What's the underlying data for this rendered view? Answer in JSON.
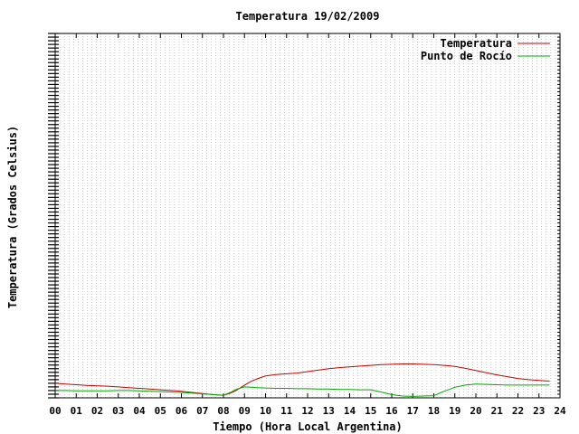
{
  "chart_data": {
    "type": "line",
    "title": "Temperatura 19/02/2009",
    "xlabel": "Tiempo (Hora Local Argentina)",
    "ylabel": "Temperatura (Grados Celsius)",
    "x_ticks": [
      "00",
      "01",
      "02",
      "03",
      "04",
      "05",
      "06",
      "07",
      "08",
      "09",
      "10",
      "11",
      "12",
      "13",
      "14",
      "15",
      "16",
      "17",
      "18",
      "19",
      "20",
      "21",
      "22",
      "23",
      "24"
    ],
    "xlim": [
      0,
      24
    ],
    "ylim": [
      0,
      100
    ],
    "grid": true,
    "legend_position": "top-right",
    "colors": {
      "temperatura": "#cc0000",
      "rocio": "#00aa00",
      "grid": "#a0a0a0",
      "axis": "#000000"
    },
    "series": [
      {
        "name": "Temperatura",
        "color": "#cc0000",
        "x": [
          0,
          0.5,
          1,
          1.5,
          2,
          2.5,
          3,
          3.5,
          4,
          4.5,
          5,
          5.5,
          6,
          6.5,
          7,
          7.5,
          8,
          8.3,
          8.6,
          9,
          9.3,
          9.6,
          10,
          10.5,
          11,
          11.5,
          12,
          12.5,
          13,
          13.5,
          14,
          14.5,
          15,
          15.5,
          16,
          16.5,
          17,
          17.5,
          18,
          18.5,
          19,
          19.5,
          20,
          20.5,
          21,
          21.5,
          22,
          22.5,
          23,
          23.5
        ],
        "y": [
          4,
          3.8,
          3.6,
          3.4,
          3.3,
          3.2,
          3,
          2.8,
          2.6,
          2.4,
          2.2,
          2,
          1.8,
          1.5,
          1.2,
          0.9,
          0.7,
          1.2,
          2,
          3.5,
          4.5,
          5.2,
          6,
          6.4,
          6.6,
          6.8,
          7.2,
          7.6,
          8,
          8.3,
          8.5,
          8.7,
          8.9,
          9.1,
          9.2,
          9.3,
          9.3,
          9.2,
          9.1,
          8.9,
          8.6,
          8.1,
          7.5,
          6.9,
          6.3,
          5.8,
          5.3,
          5,
          4.8,
          4.6
        ]
      },
      {
        "name": "Punto de Rocío",
        "color": "#00aa00",
        "x": [
          0,
          0.5,
          1,
          1.5,
          2,
          2.5,
          3,
          3.5,
          4,
          4.5,
          5,
          5.5,
          6,
          6.5,
          7,
          7.5,
          8,
          8.3,
          8.6,
          9,
          9.3,
          9.6,
          10,
          10.5,
          11,
          11.5,
          12,
          12.5,
          13,
          13.5,
          14,
          14.5,
          15,
          15.5,
          16,
          16.5,
          17,
          17.5,
          18,
          18.5,
          19,
          19.5,
          20,
          20.5,
          21,
          21.5,
          22,
          22.5,
          23,
          23.5
        ],
        "y": [
          2,
          2,
          1.9,
          1.9,
          1.9,
          1.9,
          2,
          2,
          1.9,
          1.8,
          1.7,
          1.6,
          1.5,
          1.3,
          1.1,
          0.9,
          0.7,
          1.4,
          2.3,
          3,
          2.9,
          2.8,
          2.7,
          2.6,
          2.6,
          2.5,
          2.5,
          2.4,
          2.4,
          2.3,
          2.3,
          2.2,
          2.2,
          1.6,
          0.9,
          0.5,
          0.4,
          0.5,
          0.6,
          1.8,
          2.9,
          3.5,
          3.8,
          3.7,
          3.6,
          3.5,
          3.5,
          3.5,
          3.5,
          3.5
        ]
      }
    ]
  }
}
